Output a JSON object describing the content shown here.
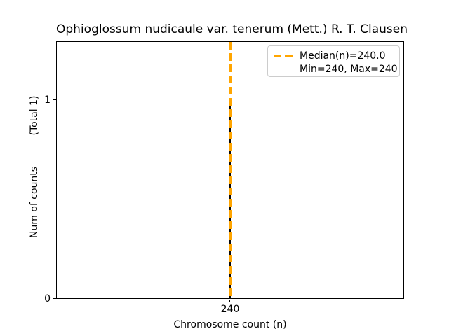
{
  "chart": {
    "title": "Ophioglossum nudicaule var. tenerum (Mett.) R. T. Clausen",
    "xlabel": "Chromosome count (n)",
    "ylabel": "Num of counts",
    "ylabel_total": "(Total 1)",
    "yticks": {
      "top": "1",
      "bottom": "0"
    },
    "xtick": "240",
    "legend": {
      "median": "Median(n)=240.0",
      "minmax": "Min=240, Max=240"
    },
    "colors": {
      "median_line": "#FFA500",
      "bar": "#0a0a0a",
      "legend_border": "#cccccc",
      "axes_border": "#000000"
    }
  },
  "chart_data": {
    "type": "bar",
    "title": "Ophioglossum nudicaule var. tenerum (Mett.) R. T. Clausen",
    "xlabel": "Chromosome count (n)",
    "ylabel": "Num of counts",
    "total_annotation": "(Total 1)",
    "categories": [
      240
    ],
    "values": [
      1
    ],
    "total_counts": 1,
    "median_n": 240.0,
    "min_n": 240,
    "max_n": 240,
    "xticks": [
      240
    ],
    "yticks": [
      0,
      1
    ],
    "ylim": [
      0,
      1.3
    ],
    "grid": false,
    "legend_position": "upper right",
    "legend_entries": [
      "Median(n)=240.0",
      "Min=240, Max=240"
    ],
    "bar_color": "#0a0a0a",
    "median_line_color": "#FFA500",
    "median_line_style": "dashed"
  }
}
